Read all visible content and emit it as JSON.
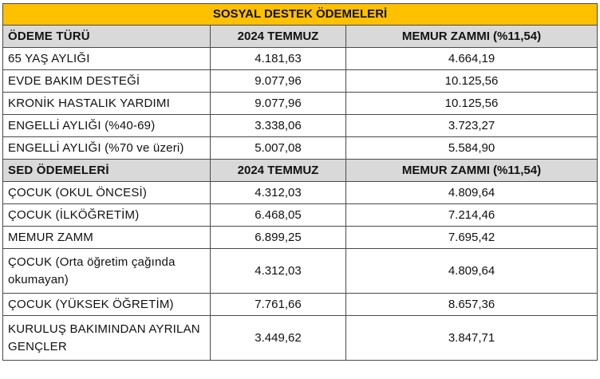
{
  "title": "SOSYAL DESTEK ÖDEMELERİ",
  "section1": {
    "header": [
      "ÖDEME TÜRÜ",
      "2024 TEMMUZ",
      "MEMUR ZAMMI (%11,54)"
    ],
    "rows": [
      [
        "65 YAŞ AYLIĞI",
        "4.181,63",
        "4.664,19"
      ],
      [
        "EVDE BAKIM DESTEĞİ",
        "9.077,96",
        "10.125,56"
      ],
      [
        "KRONİK HASTALIK YARDIMI",
        "9.077,96",
        "10.125,56"
      ],
      [
        "ENGELLİ AYLIĞI (%40-69)",
        "3.338,06",
        "3.723,27"
      ],
      [
        "ENGELLİ AYLIĞI (%70 ve üzeri)",
        "5.007,08",
        "5.584,90"
      ]
    ]
  },
  "section2": {
    "header": [
      "SED ÖDEMELERİ",
      "2024 TEMMUZ",
      "MEMUR ZAMMI (%11,54)"
    ],
    "rows": [
      [
        "ÇOCUK (OKUL ÖNCESİ)",
        "4.312,03",
        "4.809,64"
      ],
      [
        "ÇOCUK (İLKÖĞRETİM)",
        "6.468,05",
        "7.214,46"
      ],
      [
        "MEMUR ZAMM",
        "6.899,25",
        "7.695,42"
      ],
      [
        "ÇOCUK (Orta öğretim çağında okumayan)",
        "4.312,03",
        "4.809,64"
      ],
      [
        "ÇOCUK (YÜKSEK ÖĞRETİM)",
        "7.761,66",
        "8.657,36"
      ],
      [
        "KURULUŞ BAKIMINDAN AYRILAN GENÇLER",
        "3.449,62",
        "3.847,71"
      ]
    ]
  }
}
